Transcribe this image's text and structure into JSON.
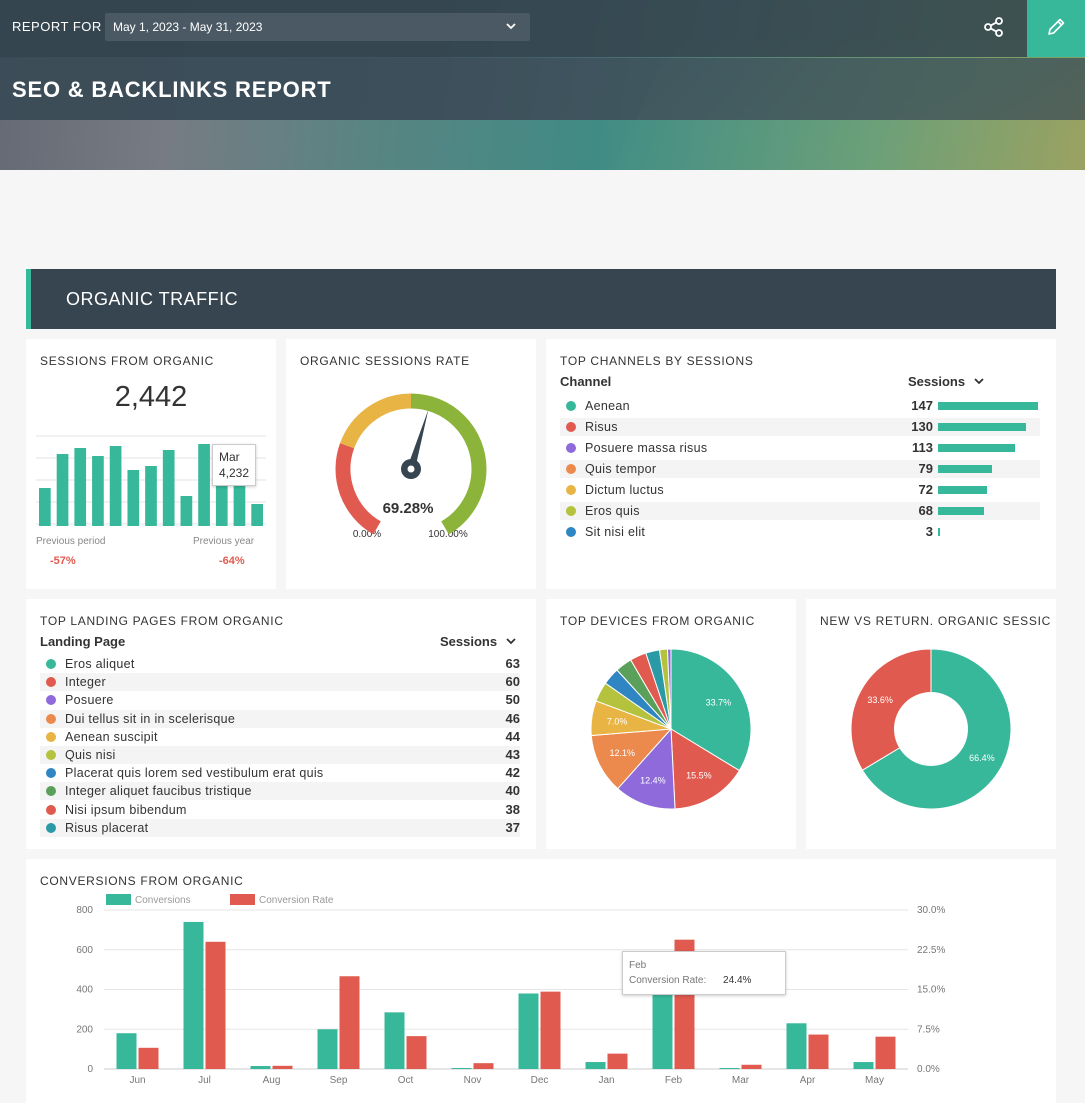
{
  "header": {
    "report_for_label": "REPORT FOR",
    "date_range": "May 1, 2023 - May 31, 2023",
    "title": "SEO & BACKLINKS REPORT"
  },
  "section": {
    "title": "ORGANIC TRAFFIC"
  },
  "sessions_card": {
    "title": "SESSIONS FROM ORGANIC",
    "value": "2,442",
    "prev_period_label": "Previous period",
    "prev_period_pct": "-57%",
    "prev_year_label": "Previous year",
    "prev_year_pct": "-64%",
    "tooltip_month": "Mar",
    "tooltip_value": "4,232",
    "bar_color": "#37b89a"
  },
  "gauge_card": {
    "title": "ORGANIC SESSIONS RATE",
    "value": "69.28%",
    "min_label": "0.00%",
    "max_label": "100.00%",
    "fraction": 0.6928
  },
  "channels_card": {
    "title": "TOP CHANNELS BY SESSIONS",
    "col_channel": "Channel",
    "col_sessions": "Sessions",
    "rows": [
      {
        "name": "Aenean",
        "value": "147",
        "color": "#37b89a"
      },
      {
        "name": "Risus",
        "value": "130",
        "color": "#e05a4f"
      },
      {
        "name": "Posuere massa risus",
        "value": "113",
        "color": "#8e6adb"
      },
      {
        "name": "Quis tempor",
        "value": "79",
        "color": "#ec8a4e"
      },
      {
        "name": "Dictum luctus",
        "value": "72",
        "color": "#e8b444"
      },
      {
        "name": "Eros quis",
        "value": "68",
        "color": "#b5c23e"
      },
      {
        "name": "Sit nisi elit",
        "value": "3",
        "color": "#2f86c2"
      }
    ]
  },
  "landing_card": {
    "title": "TOP LANDING PAGES FROM ORGANIC",
    "col_page": "Landing Page",
    "col_sessions": "Sessions",
    "rows": [
      {
        "name": "Eros aliquet",
        "value": "63",
        "color": "#37b89a"
      },
      {
        "name": "Integer",
        "value": "60",
        "color": "#e05a4f"
      },
      {
        "name": "Posuere",
        "value": "50",
        "color": "#8e6adb"
      },
      {
        "name": "Dui tellus sit in in scelerisque",
        "value": "46",
        "color": "#ec8a4e"
      },
      {
        "name": "Aenean suscipit",
        "value": "44",
        "color": "#e8b444"
      },
      {
        "name": "Quis nisi",
        "value": "43",
        "color": "#b5c23e"
      },
      {
        "name": "Placerat quis lorem sed vestibulum erat quis",
        "value": "42",
        "color": "#2f86c2"
      },
      {
        "name": "Integer aliquet faucibus tristique",
        "value": "40",
        "color": "#5aa05a"
      },
      {
        "name": "Nisi ipsum bibendum",
        "value": "38",
        "color": "#e05a4f"
      },
      {
        "name": "Risus placerat",
        "value": "37",
        "color": "#2a9aa6"
      }
    ]
  },
  "devices_card": {
    "title": "TOP DEVICES FROM ORGANIC"
  },
  "newret_card": {
    "title": "NEW VS RETURN. ORGANIC SESSIC"
  },
  "conversions_card": {
    "title": "CONVERSIONS FROM ORGANIC",
    "tooltip_month": "Feb",
    "tooltip_label": "Conversion Rate:",
    "tooltip_value": "24.4%"
  },
  "chart_data": [
    {
      "type": "bar",
      "title": "SESSIONS FROM ORGANIC",
      "values": [
        1900,
        3600,
        3900,
        3500,
        4000,
        2800,
        3000,
        3800,
        1500,
        4100,
        2000,
        2200,
        1100
      ],
      "highlight": {
        "category": "Mar",
        "value": 4232
      }
    },
    {
      "type": "pie",
      "title": "TOP DEVICES FROM ORGANIC",
      "slices": [
        {
          "label": "33.7%",
          "value": 33.7,
          "color": "#37b89a"
        },
        {
          "label": "15.5%",
          "value": 15.5,
          "color": "#e05a4f"
        },
        {
          "label": "12.4%",
          "value": 12.4,
          "color": "#8e6adb"
        },
        {
          "label": "12.1%",
          "value": 12.1,
          "color": "#ec8a4e"
        },
        {
          "label": "7.0%",
          "value": 7.0,
          "color": "#e8b444"
        },
        {
          "label": "",
          "value": 4.0,
          "color": "#b5c23e"
        },
        {
          "label": "",
          "value": 3.5,
          "color": "#2f86c2"
        },
        {
          "label": "",
          "value": 3.4,
          "color": "#5aa05a"
        },
        {
          "label": "",
          "value": 3.3,
          "color": "#e05a4f"
        },
        {
          "label": "",
          "value": 2.8,
          "color": "#2a9aa6"
        },
        {
          "label": "",
          "value": 1.6,
          "color": "#b5c23e"
        },
        {
          "label": "",
          "value": 0.7,
          "color": "#8e6adb"
        }
      ]
    },
    {
      "type": "pie",
      "title": "NEW VS RETURN. ORGANIC SESSIC",
      "donut": true,
      "slices": [
        {
          "label": "66.4%",
          "value": 66.4,
          "color": "#37b89a"
        },
        {
          "label": "33.6%",
          "value": 33.6,
          "color": "#e05a4f"
        }
      ]
    },
    {
      "type": "bar",
      "title": "CONVERSIONS FROM ORGANIC",
      "categories": [
        "Jun",
        "Jul",
        "Aug",
        "Sep",
        "Oct",
        "Nov",
        "Dec",
        "Jan",
        "Feb",
        "Mar",
        "Apr",
        "May"
      ],
      "series": [
        {
          "name": "Conversions",
          "axis": "left",
          "color": "#37b89a",
          "values": [
            180,
            740,
            15,
            200,
            285,
            5,
            380,
            35,
            375,
            5,
            230,
            35
          ]
        },
        {
          "name": "Conversion Rate",
          "axis": "right",
          "color": "#e05a4f",
          "values": [
            4.0,
            24.0,
            0.6,
            17.5,
            6.2,
            1.1,
            14.6,
            2.9,
            24.4,
            0.8,
            6.5,
            6.1
          ]
        }
      ],
      "ylim_left": [
        0,
        800
      ],
      "yticks_left": [
        "0",
        "200",
        "400",
        "600",
        "800"
      ],
      "ylim_right": [
        0,
        30
      ],
      "yticks_right": [
        "0.0%",
        "7.5%",
        "15.0%",
        "22.5%",
        "30.0%"
      ]
    }
  ]
}
